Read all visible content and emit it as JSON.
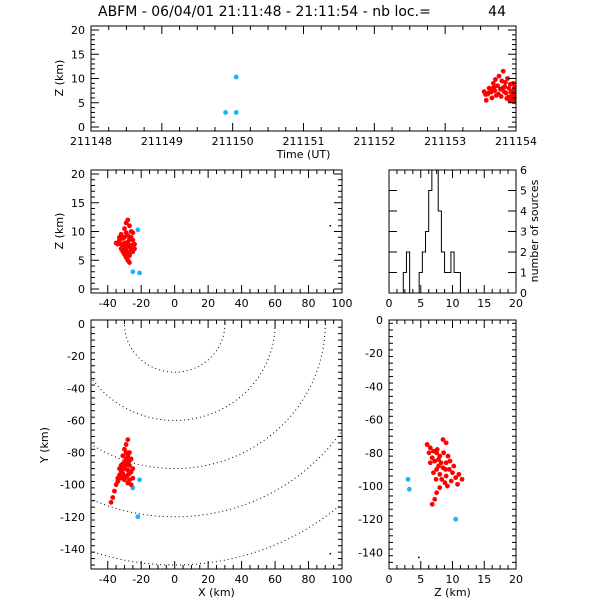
{
  "title": {
    "text": "ABFM - 06/04/01 21:11:48 - 21:11:54 - nb loc.=",
    "count": "44"
  },
  "colors": {
    "red": "#ff0000",
    "blue": "#19b4ff",
    "axis": "#000000"
  },
  "chart_data": [
    {
      "name": "time-height",
      "type": "scatter",
      "xlabel": "Time (UT)",
      "ylabel": "Z (km)",
      "xlim": [
        211148,
        211154
      ],
      "ylim": [
        0,
        20
      ],
      "xticks": [
        211148,
        211149,
        211150,
        211151,
        211152,
        211153,
        211154
      ],
      "yticks": [
        0,
        5,
        10,
        15,
        20
      ],
      "series": [
        {
          "color": "blue",
          "points": [
            [
              211150.05,
              10.3
            ],
            [
              211149.9,
              3.0
            ],
            [
              211150.05,
              3.0
            ]
          ]
        },
        {
          "color": "red",
          "points": [
            [
              211153.6,
              6.8
            ],
            [
              211153.62,
              8.0
            ],
            [
              211153.65,
              7.2
            ],
            [
              211153.68,
              9.0
            ],
            [
              211153.7,
              7.5
            ],
            [
              211153.72,
              6.5
            ],
            [
              211153.74,
              8.5
            ],
            [
              211153.76,
              10.5
            ],
            [
              211153.78,
              7.8
            ],
            [
              211153.8,
              9.5
            ],
            [
              211153.82,
              11.5
            ],
            [
              211153.84,
              8.3
            ],
            [
              211153.86,
              7.0
            ],
            [
              211153.88,
              10.0
            ],
            [
              211153.9,
              6.2
            ],
            [
              211153.92,
              8.8
            ],
            [
              211153.94,
              5.8
            ],
            [
              211153.96,
              7.5
            ],
            [
              211153.55,
              7.3
            ],
            [
              211153.58,
              5.5
            ],
            [
              211153.66,
              6.0
            ],
            [
              211153.75,
              6.8
            ],
            [
              211153.85,
              9.2
            ],
            [
              211153.9,
              8.0
            ],
            [
              211153.95,
              6.5
            ],
            [
              211153.97,
              5.2
            ],
            [
              211153.98,
              8.2
            ],
            [
              211153.99,
              6.0
            ],
            [
              211153.93,
              7.2
            ],
            [
              211153.87,
              5.9
            ],
            [
              211153.81,
              8.0
            ],
            [
              211153.71,
              9.8
            ],
            [
              211153.64,
              7.9
            ],
            [
              211153.57,
              6.7
            ],
            [
              211153.99,
              7.0
            ],
            [
              211153.96,
              9.0
            ],
            [
              211153.91,
              5.5
            ],
            [
              211153.83,
              7.3
            ],
            [
              211153.79,
              6.3
            ],
            [
              211153.69,
              8.2
            ],
            [
              211153.61,
              7.0
            ]
          ]
        }
      ]
    },
    {
      "name": "x-height",
      "type": "scatter",
      "ylabel": "Z (km)",
      "xlim": [
        -50,
        100
      ],
      "ylim": [
        0,
        20
      ],
      "xticks": [
        -40,
        -20,
        0,
        20,
        40,
        60,
        80,
        100
      ],
      "yticks": [
        0,
        5,
        10,
        15,
        20
      ],
      "series": [
        {
          "color": "blue",
          "points": [
            [
              -22,
              10.3
            ],
            [
              -25,
              3.0
            ],
            [
              -21,
              2.8
            ]
          ]
        },
        {
          "color": "red",
          "points": [
            [
              -28,
              12.0
            ],
            [
              -30,
              10.5
            ],
            [
              -27,
              11.0
            ],
            [
              -32,
              9.5
            ],
            [
              -29,
              9.8
            ],
            [
              -26,
              9.0
            ],
            [
              -33,
              8.5
            ],
            [
              -31,
              8.8
            ],
            [
              -28,
              8.2
            ],
            [
              -25,
              8.5
            ],
            [
              -34,
              7.8
            ],
            [
              -30,
              7.6
            ],
            [
              -27,
              7.4
            ],
            [
              -24,
              7.8
            ],
            [
              -32,
              7.0
            ],
            [
              -29,
              7.0
            ],
            [
              -26,
              6.8
            ],
            [
              -31,
              6.5
            ],
            [
              -28,
              6.3
            ],
            [
              -25,
              6.5
            ],
            [
              -30,
              6.0
            ],
            [
              -27,
              5.8
            ],
            [
              -29,
              5.5
            ],
            [
              -28,
              5.0
            ],
            [
              -27,
              4.6
            ],
            [
              -33,
              9.0
            ],
            [
              -26,
              10.0
            ],
            [
              -29,
              11.5
            ],
            [
              -31,
              7.2
            ],
            [
              -24,
              7.0
            ],
            [
              -35,
              8.0
            ],
            [
              -28,
              9.3
            ],
            [
              -30,
              8.0
            ],
            [
              -26,
              7.6
            ],
            [
              -29,
              6.8
            ],
            [
              -27,
              6.0
            ],
            [
              -32,
              7.8
            ],
            [
              -28,
              7.7
            ],
            [
              -30,
              9.0
            ],
            [
              -25,
              9.8
            ],
            [
              -27,
              8.6
            ]
          ]
        },
        {
          "color": "black",
          "points": [
            [
              93,
              11.0
            ]
          ]
        }
      ]
    },
    {
      "name": "height-histogram",
      "type": "bar",
      "ylabel": "number of sources",
      "xlim": [
        0,
        20
      ],
      "ylim": [
        0,
        6
      ],
      "xticks": [
        0,
        5,
        10,
        15,
        20
      ],
      "yticks": [
        0,
        1,
        2,
        3,
        4,
        5,
        6
      ],
      "bin_width": 0.5,
      "bins": [
        [
          2.5,
          1
        ],
        [
          3.0,
          2
        ],
        [
          3.5,
          0
        ],
        [
          4.0,
          0
        ],
        [
          4.5,
          0
        ],
        [
          5.0,
          1
        ],
        [
          5.5,
          2
        ],
        [
          6.0,
          3
        ],
        [
          6.5,
          5
        ],
        [
          7.0,
          6
        ],
        [
          7.5,
          6
        ],
        [
          8.0,
          4
        ],
        [
          8.5,
          2
        ],
        [
          9.0,
          1
        ],
        [
          9.5,
          1
        ],
        [
          10.0,
          2
        ],
        [
          10.5,
          1
        ],
        [
          11.0,
          1
        ],
        [
          11.5,
          0
        ]
      ]
    },
    {
      "name": "plan-view",
      "type": "scatter",
      "xlabel": "X (km)",
      "ylabel": "Y (km)",
      "xlim": [
        -50,
        100
      ],
      "ylim": [
        -150,
        0
      ],
      "xticks": [
        -40,
        -20,
        0,
        20,
        40,
        60,
        80,
        100
      ],
      "yticks": [
        -140,
        -120,
        -100,
        -80,
        -60,
        -40,
        -20,
        0
      ],
      "range_rings": {
        "center": [
          0,
          0
        ],
        "radii": [
          30,
          60,
          90,
          120,
          150
        ]
      },
      "series": [
        {
          "color": "blue",
          "points": [
            [
              -21,
              -97
            ],
            [
              -25,
              -102
            ],
            [
              -22,
              -120
            ]
          ]
        },
        {
          "color": "red",
          "points": [
            [
              -28,
              -72
            ],
            [
              -29,
              -75
            ],
            [
              -30,
              -78
            ],
            [
              -27,
              -80
            ],
            [
              -31,
              -82
            ],
            [
              -29,
              -84
            ],
            [
              -28,
              -86
            ],
            [
              -30,
              -86
            ],
            [
              -32,
              -88
            ],
            [
              -27,
              -88
            ],
            [
              -33,
              -90
            ],
            [
              -30,
              -90
            ],
            [
              -28,
              -91
            ],
            [
              -31,
              -93
            ],
            [
              -26,
              -92
            ],
            [
              -29,
              -95
            ],
            [
              -27,
              -97
            ],
            [
              -25,
              -96
            ],
            [
              -28,
              -99
            ],
            [
              -26,
              -100
            ],
            [
              -34,
              -96
            ],
            [
              -35,
              -100
            ],
            [
              -36,
              -104
            ],
            [
              -37,
              -108
            ],
            [
              -38,
              -111
            ],
            [
              -30,
              -95
            ],
            [
              -32,
              -92
            ],
            [
              -29,
              -88
            ],
            [
              -26,
              -84
            ],
            [
              -31,
              -87
            ],
            [
              -33,
              -94
            ],
            [
              -27,
              -93
            ],
            [
              -29,
              -80
            ],
            [
              -28,
              -82
            ],
            [
              -30,
              -97
            ],
            [
              -34,
              -98
            ],
            [
              -25,
              -90
            ],
            [
              -28,
              -94
            ],
            [
              -31,
              -90
            ],
            [
              -27,
              -85
            ],
            [
              -32,
              -96
            ]
          ]
        },
        {
          "color": "black",
          "points": [
            [
              93,
              -143
            ]
          ]
        }
      ]
    },
    {
      "name": "height-y",
      "type": "scatter",
      "xlabel": "Z (km)",
      "xlim": [
        0,
        20
      ],
      "ylim": [
        -150,
        0
      ],
      "xticks": [
        0,
        5,
        10,
        15,
        20
      ],
      "yticks": [
        -140,
        -120,
        -100,
        -80,
        -60,
        -40,
        -20,
        0
      ],
      "series": [
        {
          "color": "blue",
          "points": [
            [
              3.0,
              -96
            ],
            [
              3.2,
              -102
            ],
            [
              10.5,
              -120
            ]
          ]
        },
        {
          "color": "red",
          "points": [
            [
              6.0,
              -75
            ],
            [
              6.5,
              -77
            ],
            [
              8.5,
              -72
            ],
            [
              9.0,
              -74
            ],
            [
              7.0,
              -79
            ],
            [
              7.5,
              -80
            ],
            [
              8.0,
              -82
            ],
            [
              6.8,
              -83
            ],
            [
              7.2,
              -85
            ],
            [
              8.2,
              -86
            ],
            [
              9.0,
              -86
            ],
            [
              7.8,
              -88
            ],
            [
              8.5,
              -89
            ],
            [
              9.5,
              -90
            ],
            [
              10.0,
              -92
            ],
            [
              7.5,
              -90
            ],
            [
              8.0,
              -93
            ],
            [
              9.0,
              -94
            ],
            [
              10.5,
              -95
            ],
            [
              11.0,
              -93
            ],
            [
              11.5,
              -96
            ],
            [
              8.8,
              -98
            ],
            [
              9.2,
              -100
            ],
            [
              8.0,
              -101
            ],
            [
              7.5,
              -104
            ],
            [
              7.2,
              -108
            ],
            [
              6.8,
              -111
            ],
            [
              6.5,
              -86
            ],
            [
              7.8,
              -84
            ],
            [
              8.6,
              -80
            ],
            [
              9.3,
              -82
            ],
            [
              7.0,
              -92
            ],
            [
              8.3,
              -96
            ],
            [
              9.8,
              -97
            ],
            [
              10.2,
              -88
            ],
            [
              7.6,
              -78
            ],
            [
              8.9,
              -90
            ],
            [
              9.6,
              -85
            ],
            [
              6.3,
              -80
            ],
            [
              7.4,
              -96
            ],
            [
              10.8,
              -99
            ]
          ]
        },
        {
          "color": "black",
          "points": [
            [
              4.7,
              -143
            ]
          ]
        }
      ]
    }
  ]
}
